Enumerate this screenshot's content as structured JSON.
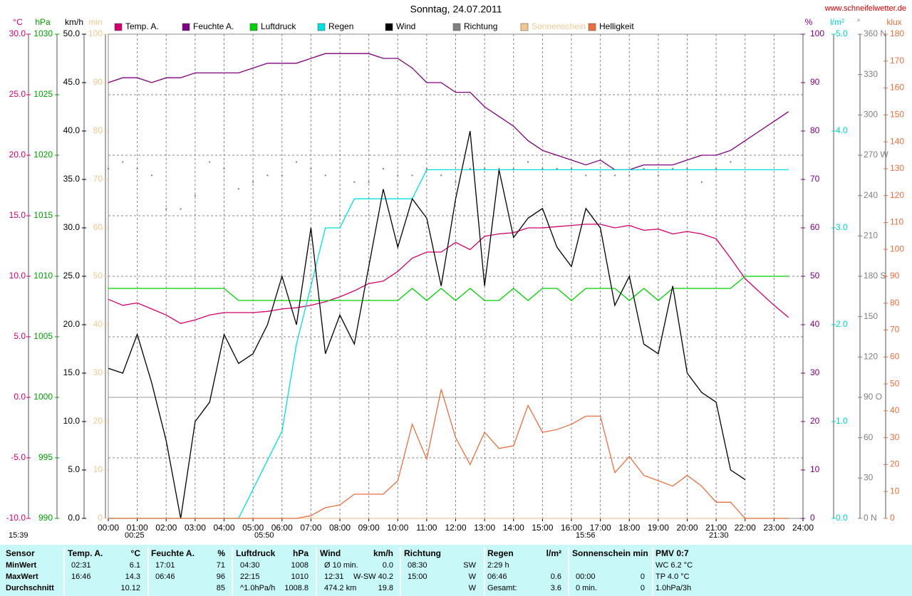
{
  "site": "www.schneifelwetter.de",
  "time_markers": [
    "15:39",
    "00:25",
    "05:50",
    "15:56",
    "21:30"
  ],
  "chart_data": {
    "type": "line",
    "title": "Sonntag, 24.07.2011",
    "grid": true,
    "xlim": [
      0,
      24
    ],
    "xticks": [
      {
        "value": 0,
        "label": "00:00"
      },
      {
        "value": 1,
        "label": "01:00"
      },
      {
        "value": 2,
        "label": "02:00"
      },
      {
        "value": 3,
        "label": "03:00"
      },
      {
        "value": 4,
        "label": "04:00"
      },
      {
        "value": 5,
        "label": "05:00"
      },
      {
        "value": 6,
        "label": "06:00"
      },
      {
        "value": 7,
        "label": "07:00"
      },
      {
        "value": 8,
        "label": "08:00"
      },
      {
        "value": 9,
        "label": "09:00"
      },
      {
        "value": 10,
        "label": "10:00"
      },
      {
        "value": 11,
        "label": "11:00"
      },
      {
        "value": 12,
        "label": "12:00"
      },
      {
        "value": 13,
        "label": "13:00"
      },
      {
        "value": 14,
        "label": "14:00"
      },
      {
        "value": 15,
        "label": "15:00"
      },
      {
        "value": 16,
        "label": "16:00"
      },
      {
        "value": 17,
        "label": "17:00"
      },
      {
        "value": 18,
        "label": "18:00"
      },
      {
        "value": 19,
        "label": "19:00"
      },
      {
        "value": 20,
        "label": "20:00"
      },
      {
        "value": 21,
        "label": "21:00"
      },
      {
        "value": 22,
        "label": "22:00"
      },
      {
        "value": 23,
        "label": "23:00"
      },
      {
        "value": 24,
        "label": "24:00"
      }
    ],
    "x": [
      0,
      0.5,
      1,
      1.5,
      2,
      2.5,
      3,
      3.5,
      4,
      4.5,
      5,
      5.5,
      6,
      6.5,
      7,
      7.5,
      8,
      8.5,
      9,
      9.5,
      10,
      10.5,
      11,
      11.5,
      12,
      12.5,
      13,
      13.5,
      14,
      14.5,
      15,
      15.5,
      16,
      16.5,
      17,
      17.5,
      18,
      18.5,
      19,
      19.5,
      20,
      20.5,
      21,
      21.5,
      22,
      22.5,
      23,
      23.5
    ],
    "axes": [
      {
        "unit": "°C",
        "color": "#d0006f",
        "lim": [
          -10,
          30
        ],
        "ticks": [
          {
            "value": -10,
            "label": "-10.0"
          },
          {
            "value": -5,
            "label": "-5.0"
          },
          {
            "value": 0,
            "label": "0.0"
          },
          {
            "value": 5,
            "label": "5.0"
          },
          {
            "value": 10,
            "label": "10.0"
          },
          {
            "value": 15,
            "label": "15.0"
          },
          {
            "value": 20,
            "label": "20.0"
          },
          {
            "value": 25,
            "label": "25.0"
          },
          {
            "value": 30,
            "label": "30.0"
          }
        ]
      },
      {
        "unit": "hPa",
        "color": "#00a000",
        "lim": [
          990,
          1030
        ],
        "ticks": [
          990,
          995,
          1000,
          1005,
          1010,
          1015,
          1020,
          1025,
          1030
        ]
      },
      {
        "unit": "km/h",
        "color": "#000000",
        "lim": [
          0,
          50
        ],
        "ticks": [
          {
            "value": 0,
            "label": "0.0"
          },
          {
            "value": 5,
            "label": "5.0"
          },
          {
            "value": 10,
            "label": "10.0"
          },
          {
            "value": 15,
            "label": "15.0"
          },
          {
            "value": 20,
            "label": "20.0"
          },
          {
            "value": 25,
            "label": "25.0"
          },
          {
            "value": 30,
            "label": "30.0"
          },
          {
            "value": 35,
            "label": "35.0"
          },
          {
            "value": 40,
            "label": "40.0"
          },
          {
            "value": 45,
            "label": "45.0"
          },
          {
            "value": 50,
            "label": "50.0"
          }
        ]
      },
      {
        "unit": "min",
        "color": "#f0c890",
        "lim": [
          0,
          100
        ],
        "ticks": [
          0,
          10,
          20,
          30,
          40,
          50,
          60,
          70,
          80,
          90,
          100
        ]
      },
      {
        "unit": "%",
        "color": "#800080",
        "lim": [
          0,
          100
        ],
        "ticks": [
          0,
          10,
          20,
          30,
          40,
          50,
          60,
          70,
          80,
          90,
          100
        ]
      },
      {
        "unit": "l/m²",
        "color": "#00d0d0",
        "lim": [
          0,
          5
        ],
        "ticks": [
          {
            "value": 0,
            "label": "0.0"
          },
          {
            "value": 1,
            "label": "1.0"
          },
          {
            "value": 2,
            "label": "2.0"
          },
          {
            "value": 3,
            "label": "3.0"
          },
          {
            "value": 4,
            "label": "4.0"
          },
          {
            "value": 5,
            "label": "5.0"
          }
        ]
      },
      {
        "unit": "°",
        "color": "#808080",
        "lim": [
          0,
          360
        ],
        "ticks": [
          {
            "value": 0,
            "label": "0 N"
          },
          30,
          60,
          {
            "value": 90,
            "label": "90 O"
          },
          120,
          150,
          {
            "value": 180,
            "label": "180 S"
          },
          210,
          240,
          {
            "value": 270,
            "label": "270 W"
          },
          300,
          330,
          {
            "value": 360,
            "label": "360 N"
          }
        ]
      },
      {
        "unit": "klux",
        "color": "#e87040",
        "lim": [
          0,
          180
        ],
        "ticks": [
          0,
          10,
          20,
          30,
          40,
          50,
          60,
          70,
          80,
          90,
          100,
          110,
          120,
          130,
          140,
          150,
          160,
          170,
          180
        ]
      }
    ],
    "series": [
      {
        "name": "Temp. A.",
        "color": "#d0006f",
        "axis": 0,
        "style": "line",
        "values": [
          8.1,
          7.6,
          7.8,
          7.3,
          6.8,
          6.1,
          6.4,
          6.8,
          7.0,
          7.0,
          7.0,
          7.1,
          7.3,
          7.4,
          7.6,
          7.9,
          8.3,
          8.8,
          9.4,
          9.6,
          10.4,
          11.5,
          12.0,
          12.0,
          12.8,
          12.2,
          13.3,
          13.5,
          13.6,
          14.0,
          14.0,
          14.1,
          14.2,
          14.3,
          14.3,
          14.0,
          14.2,
          13.8,
          13.9,
          13.5,
          13.7,
          13.5,
          13.1,
          11.5,
          9.8,
          8.7,
          7.6,
          6.6
        ]
      },
      {
        "name": "Feuchte A.",
        "color": "#800080",
        "axis": 4,
        "style": "line",
        "values": [
          90,
          91,
          91,
          90,
          91,
          91,
          92,
          92,
          92,
          92,
          93,
          94,
          94,
          94,
          95,
          96,
          96,
          96,
          96,
          95,
          95,
          93,
          90,
          90,
          88,
          88,
          85,
          83,
          81,
          78,
          76,
          75,
          74,
          73,
          74,
          72,
          72,
          73,
          73,
          73,
          74,
          75,
          75,
          76,
          78,
          80,
          82,
          84
        ]
      },
      {
        "name": "Luftdruck",
        "color": "#00d000",
        "axis": 1,
        "style": "line",
        "values": [
          1009,
          1009,
          1009,
          1009,
          1009,
          1009,
          1009,
          1009,
          1009,
          1008,
          1008,
          1008,
          1008,
          1008,
          1008,
          1008,
          1008,
          1008,
          1008,
          1008,
          1008,
          1009,
          1008,
          1009,
          1008,
          1009,
          1008,
          1008,
          1009,
          1008,
          1009,
          1009,
          1008,
          1009,
          1009,
          1009,
          1008,
          1009,
          1008,
          1009,
          1009,
          1009,
          1009,
          1009,
          1010,
          1010,
          1010,
          1010
        ]
      },
      {
        "name": "Regen",
        "color": "#00e0e0",
        "axis": 5,
        "style": "line",
        "values": [
          0,
          0,
          0,
          0,
          0,
          0,
          0,
          0,
          0,
          0,
          0.3,
          0.6,
          0.9,
          1.8,
          2.4,
          3.0,
          3.0,
          3.3,
          3.3,
          3.3,
          3.3,
          3.3,
          3.6,
          3.6,
          3.6,
          3.6,
          3.6,
          3.6,
          3.6,
          3.6,
          3.6,
          3.6,
          3.6,
          3.6,
          3.6,
          3.6,
          3.6,
          3.6,
          3.6,
          3.6,
          3.6,
          3.6,
          3.6,
          3.6,
          3.6,
          3.6,
          3.6,
          3.6
        ]
      },
      {
        "name": "Wind",
        "color": "#000000",
        "axis": 2,
        "style": "line",
        "values": [
          15.5,
          15,
          19,
          14,
          8,
          0,
          10,
          12,
          19,
          16,
          17,
          20,
          25,
          20,
          30,
          17,
          21,
          18,
          26,
          34,
          28,
          33,
          31,
          24,
          33,
          40,
          24,
          36,
          29,
          31,
          32,
          28,
          26,
          32,
          30,
          22,
          25,
          18,
          17,
          24,
          15,
          13,
          12,
          5,
          4,
          null,
          null,
          null
        ]
      },
      {
        "name": "Richtung",
        "color": "#808080",
        "axis": 6,
        "style": "dots",
        "values": [
          260,
          265,
          260,
          255,
          230,
          230,
          240,
          265,
          260,
          245,
          250,
          255,
          255,
          265,
          260,
          255,
          225,
          250,
          250,
          260,
          255,
          255,
          260,
          255,
          250,
          260,
          260,
          260,
          260,
          265,
          260,
          260,
          260,
          255,
          255,
          255,
          255,
          260,
          255,
          260,
          260,
          250,
          260,
          265,
          null,
          null,
          null,
          null
        ]
      },
      {
        "name": "Sonnenschein",
        "color": "#f0c890",
        "axis": 3,
        "style": "line",
        "values": [
          0,
          0,
          0,
          0,
          0,
          0,
          0,
          0,
          0,
          0,
          0,
          0,
          0,
          0,
          0,
          0,
          0,
          0,
          0,
          0,
          0,
          0,
          0,
          0,
          0,
          0,
          0,
          0,
          0,
          0,
          0,
          0,
          0,
          0,
          0,
          0,
          0,
          0,
          0,
          0,
          0,
          0,
          0,
          0,
          0,
          0,
          0,
          0
        ]
      },
      {
        "name": "Helligkeit",
        "color": "#e87040",
        "axis": 7,
        "style": "line",
        "values": [
          0,
          0,
          0,
          0,
          0,
          0,
          0,
          0,
          0,
          0,
          0,
          0,
          0,
          0,
          1,
          4,
          5,
          9,
          9,
          9,
          14,
          35,
          22,
          48,
          30,
          20,
          32,
          26,
          27,
          42,
          32,
          33,
          35,
          38,
          38,
          17,
          23,
          16,
          14,
          12,
          16,
          12,
          6,
          6,
          0,
          0,
          0,
          0
        ]
      }
    ]
  },
  "stats_table": {
    "header": [
      "Sensor",
      "Temp. A.",
      "°C",
      "Feuchte A.",
      "%",
      "Luftdruck",
      "hPa",
      "Wind",
      "km/h",
      "Richtung",
      "Regen",
      "l/m²",
      "Sonnenschein min",
      "PMV 0:7"
    ],
    "rows": [
      [
        "MinWert",
        "02:31",
        "6.1",
        "17:01",
        "71",
        "04:30",
        "1008",
        "Ø 10 min.",
        "0.0",
        "08:30",
        "SW",
        "2:29 h",
        null,
        null,
        null,
        "WC 6.2 °C"
      ],
      [
        "MaxWert",
        "16:46",
        "14.3",
        "06:46",
        "96",
        "22:15",
        "1010",
        "12:31",
        "W-SW 40.2",
        "15:00",
        "W",
        "06:46",
        "0.6",
        "00:00",
        "0",
        "TP 4.0 °C"
      ],
      [
        "Durchschnitt",
        null,
        "10.12",
        null,
        "85",
        "^1.0hPa/h",
        "1008.8",
        "474.2 km",
        "19.8",
        null,
        "W",
        "Gesamt:",
        "3.6",
        "0 min.",
        "0",
        "1.0hPa/3h"
      ]
    ]
  }
}
